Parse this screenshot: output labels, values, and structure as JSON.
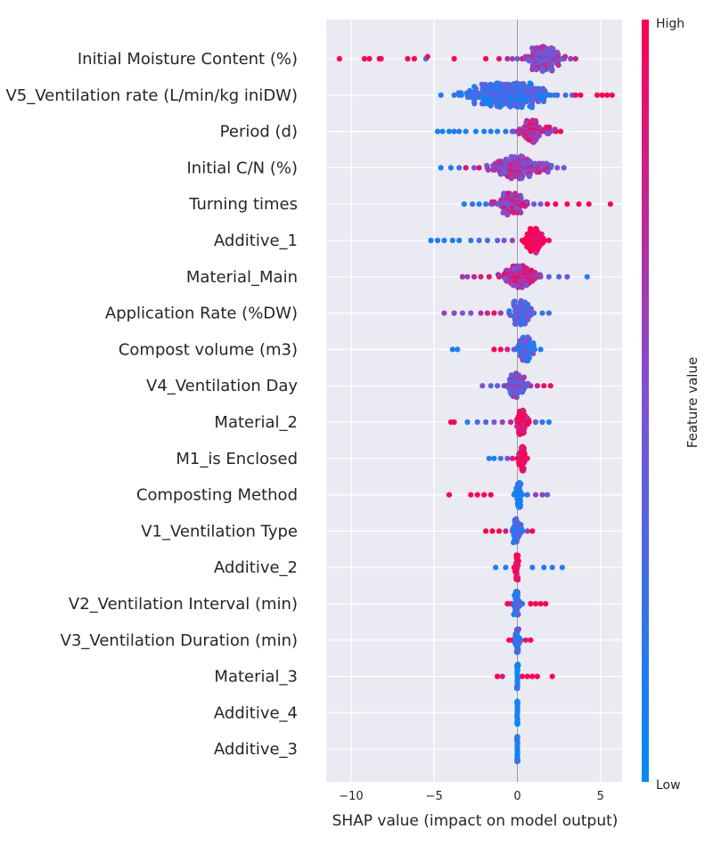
{
  "chart_data": {
    "type": "scatter",
    "subtype": "shap-beeswarm",
    "title": "",
    "xlabel": "SHAP value (impact on model output)",
    "ylabel": "",
    "xlim": [
      -11.5,
      6.3
    ],
    "xticks": [
      -10,
      -5,
      0,
      5
    ],
    "xtick_labels": [
      "−10",
      "−5",
      "0",
      "5"
    ],
    "grid": true,
    "colorbar": {
      "title": "Feature value",
      "high_label": "High",
      "low_label": "Low",
      "low_color": "#008afb",
      "high_color": "#ff0052"
    },
    "features": [
      {
        "name": "Initial Moisture Content (%)",
        "points": [
          [
            -10.7,
            1
          ],
          [
            -9.2,
            1
          ],
          [
            -8.9,
            1
          ],
          [
            -8.3,
            1
          ],
          [
            -8.2,
            1
          ],
          [
            -6.6,
            1
          ],
          [
            -6.2,
            1
          ],
          [
            -5.5,
            0.1
          ],
          [
            -5.4,
            0.9
          ],
          [
            -3.8,
            1
          ],
          [
            -1.9,
            1
          ],
          [
            -1.1,
            0.9
          ],
          [
            -0.6,
            0.7
          ],
          [
            -0.3,
            0.6
          ],
          [
            0,
            0.4
          ],
          [
            0.3,
            0.9
          ],
          [
            0.5,
            0.5
          ],
          [
            0.7,
            0.3
          ],
          [
            0.9,
            0.7
          ],
          [
            1.1,
            0.8
          ],
          [
            1.3,
            0.6
          ],
          [
            1.5,
            0.4
          ],
          [
            1.7,
            0.6
          ],
          [
            1.9,
            0.3
          ],
          [
            2.1,
            0.6
          ],
          [
            2.4,
            0.5
          ],
          [
            2.7,
            0.5
          ],
          [
            3.2,
            0.6
          ],
          [
            3.5,
            0.8
          ]
        ],
        "spread": [
          0.2,
          3.0
        ],
        "fill": 0.55,
        "density": 1.2
      },
      {
        "name": "V5_Ventilation rate (L/min/kg iniDW)",
        "points": [
          [
            -4.6,
            0.1
          ],
          [
            -3.8,
            0.1
          ],
          [
            -3.5,
            0.2
          ],
          [
            -3.0,
            0.1
          ],
          [
            -2.6,
            0.2
          ],
          [
            -2.1,
            0.1
          ],
          [
            -1.7,
            0.1
          ],
          [
            -1.3,
            0.2
          ],
          [
            -0.9,
            0.1
          ],
          [
            -0.5,
            0.1
          ],
          [
            0,
            0.2
          ],
          [
            0.4,
            0.2
          ],
          [
            0.8,
            0.3
          ],
          [
            1.2,
            0.2
          ],
          [
            1.6,
            0.3
          ],
          [
            2.0,
            0.2
          ],
          [
            2.4,
            0.3
          ],
          [
            2.9,
            0.3
          ],
          [
            3.3,
            0.3
          ],
          [
            3.5,
            1
          ],
          [
            3.8,
            1
          ],
          [
            4.8,
            1
          ],
          [
            5.1,
            1
          ],
          [
            5.4,
            1
          ],
          [
            5.7,
            1
          ]
        ],
        "spread": [
          -4.0,
          2.6
        ],
        "fill": 0.25,
        "density": 1.6
      },
      {
        "name": "Period (d)",
        "points": [
          [
            -4.8,
            0.1
          ],
          [
            -4.5,
            0.1
          ],
          [
            -4.1,
            0.1
          ],
          [
            -3.8,
            0.1
          ],
          [
            -3.5,
            0.1
          ],
          [
            -3.1,
            0.1
          ],
          [
            -2.5,
            0.1
          ],
          [
            -2.0,
            0.1
          ],
          [
            -1.6,
            0.1
          ],
          [
            -1.2,
            0.1
          ],
          [
            -0.7,
            0.2
          ],
          [
            -0.3,
            0.3
          ],
          [
            0.1,
            0.5
          ],
          [
            0.5,
            0.6
          ],
          [
            0.9,
            0.7
          ],
          [
            1.3,
            0.8
          ],
          [
            1.7,
            0.9
          ],
          [
            2.0,
            0.9
          ],
          [
            2.3,
            1
          ],
          [
            2.6,
            1
          ]
        ],
        "spread": [
          -0.5,
          2.4
        ],
        "fill": 0.7,
        "density": 0.8
      },
      {
        "name": "Initial C/N (%)",
        "points": [
          [
            -4.6,
            0.1
          ],
          [
            -4.0,
            0.1
          ],
          [
            -3.5,
            0.2
          ],
          [
            -3.1,
            0.9
          ],
          [
            -2.6,
            0.5
          ],
          [
            -2.3,
            0.9
          ],
          [
            -1.8,
            0.8
          ],
          [
            -1.3,
            0.8
          ],
          [
            -0.9,
            0.9
          ],
          [
            -0.5,
            0.7
          ],
          [
            0,
            0.6
          ],
          [
            0.4,
            0.5
          ],
          [
            0.8,
            0.5
          ],
          [
            1.2,
            0.4
          ],
          [
            1.6,
            0.4
          ],
          [
            2.0,
            0.4
          ],
          [
            2.4,
            0.5
          ],
          [
            2.8,
            0.4
          ]
        ],
        "spread": [
          -2.5,
          2.6
        ],
        "fill": 0.6,
        "density": 1.0
      },
      {
        "name": "Turning times",
        "points": [
          [
            -3.2,
            0.1
          ],
          [
            -2.7,
            0.2
          ],
          [
            -2.3,
            0.1
          ],
          [
            -1.9,
            0.2
          ],
          [
            -1.5,
            0.1
          ],
          [
            -1.0,
            0.6
          ],
          [
            -0.6,
            0.7
          ],
          [
            -0.2,
            0.8
          ],
          [
            0.2,
            0.6
          ],
          [
            0.6,
            0.6
          ],
          [
            1.0,
            0.4
          ],
          [
            1.4,
            0.5
          ],
          [
            1.8,
            0.9
          ],
          [
            2.3,
            1
          ],
          [
            3.0,
            1
          ],
          [
            3.7,
            1
          ],
          [
            4.3,
            1
          ],
          [
            5.6,
            1
          ]
        ],
        "spread": [
          -1.8,
          1.0
        ],
        "fill": 0.65,
        "density": 0.9
      },
      {
        "name": "Additive_1",
        "points": [
          [
            -5.2,
            0.1
          ],
          [
            -4.8,
            0.1
          ],
          [
            -4.4,
            0.1
          ],
          [
            -3.9,
            0.1
          ],
          [
            -3.5,
            0.1
          ],
          [
            -2.8,
            0.1
          ],
          [
            -2.3,
            0.2
          ],
          [
            -1.8,
            0.2
          ],
          [
            -1.2,
            0.4
          ],
          [
            -0.8,
            0.5
          ],
          [
            -0.3,
            0.6
          ],
          [
            0.3,
            1
          ],
          [
            0.7,
            1
          ],
          [
            1.1,
            1
          ],
          [
            1.5,
            1
          ],
          [
            1.9,
            0.95
          ]
        ],
        "spread": [
          0.1,
          1.9
        ],
        "fill": 0.97,
        "density": 1.0
      },
      {
        "name": "Material_Main",
        "points": [
          [
            -3.3,
            0.7
          ],
          [
            -3.0,
            0.6
          ],
          [
            -2.6,
            0.8
          ],
          [
            -2.2,
            0.8
          ],
          [
            -1.7,
            0.9
          ],
          [
            -1.1,
            0.9
          ],
          [
            -0.6,
            0.8
          ],
          [
            -0.1,
            0.7
          ],
          [
            0.4,
            0.8
          ],
          [
            0.9,
            0.6
          ],
          [
            1.4,
            0.5
          ],
          [
            1.9,
            0.4
          ],
          [
            2.5,
            0.3
          ],
          [
            3.0,
            0.5
          ],
          [
            4.2,
            0.1
          ]
        ],
        "spread": [
          -1.5,
          1.8
        ],
        "fill": 0.75,
        "density": 1.0
      },
      {
        "name": "Application Rate (%DW)",
        "points": [
          [
            -4.4,
            0.6
          ],
          [
            -3.8,
            0.6
          ],
          [
            -3.3,
            0.5
          ],
          [
            -2.8,
            0.5
          ],
          [
            -2.2,
            0.7
          ],
          [
            -1.8,
            0.8
          ],
          [
            -1.4,
            0.9
          ],
          [
            -1.0,
            0.7
          ],
          [
            -0.5,
            0.3
          ],
          [
            0,
            0.2
          ],
          [
            0.5,
            0.2
          ],
          [
            1.0,
            0.3
          ],
          [
            1.5,
            0.2
          ],
          [
            1.9,
            0.2
          ]
        ],
        "spread": [
          -0.8,
          1.2
        ],
        "fill": 0.35,
        "density": 1.0
      },
      {
        "name": "Compost volume (m3)",
        "points": [
          [
            -3.9,
            0.1
          ],
          [
            -3.6,
            0.1
          ],
          [
            -1.4,
            1
          ],
          [
            -1.0,
            1
          ],
          [
            -0.6,
            0.8
          ],
          [
            -0.2,
            0.5
          ],
          [
            0.2,
            0.2
          ],
          [
            0.6,
            0.2
          ],
          [
            1.0,
            0.2
          ],
          [
            1.4,
            0.1
          ]
        ],
        "spread": [
          -0.3,
          1.3
        ],
        "fill": 0.3,
        "density": 1.0
      },
      {
        "name": "V4_Ventilation Day",
        "points": [
          [
            -2.1,
            0.5
          ],
          [
            -1.6,
            0.3
          ],
          [
            -1.2,
            0.4
          ],
          [
            -0.8,
            0.3
          ],
          [
            -0.4,
            0.2
          ],
          [
            0,
            0.4
          ],
          [
            0.4,
            0.6
          ],
          [
            0.8,
            0.7
          ],
          [
            1.2,
            0.8
          ],
          [
            1.6,
            0.9
          ],
          [
            2.0,
            1
          ]
        ],
        "spread": [
          -0.9,
          0.8
        ],
        "fill": 0.45,
        "density": 1.0
      },
      {
        "name": "Material_2",
        "points": [
          [
            -4.0,
            1
          ],
          [
            -3.8,
            1
          ],
          [
            -3.0,
            0.1
          ],
          [
            -2.4,
            0.3
          ],
          [
            -1.9,
            0.3
          ],
          [
            -1.4,
            0.5
          ],
          [
            -0.9,
            0.6
          ],
          [
            -0.4,
            0.8
          ],
          [
            0,
            1
          ],
          [
            0.3,
            1
          ],
          [
            0.7,
            1
          ],
          [
            1.1,
            0.4
          ],
          [
            1.5,
            0.2
          ],
          [
            1.9,
            0.1
          ]
        ],
        "spread": [
          -0.2,
          0.7
        ],
        "fill": 0.95,
        "density": 1.2
      },
      {
        "name": "M1_is Enclosed",
        "points": [
          [
            -1.7,
            0.1
          ],
          [
            -1.4,
            0.1
          ],
          [
            -1.0,
            0.2
          ],
          [
            -0.6,
            0.5
          ],
          [
            -0.3,
            0.8
          ],
          [
            0,
            1
          ],
          [
            0.3,
            1
          ],
          [
            0.6,
            1
          ]
        ],
        "spread": [
          0.0,
          0.6
        ],
        "fill": 0.95,
        "density": 0.9
      },
      {
        "name": "Composting Method",
        "points": [
          [
            -4.1,
            1
          ],
          [
            -2.8,
            1
          ],
          [
            -2.4,
            1
          ],
          [
            -2.0,
            1
          ],
          [
            -1.6,
            1
          ],
          [
            -0.2,
            0.1
          ],
          [
            0,
            0.2
          ],
          [
            0.2,
            0.1
          ],
          [
            0.6,
            0.2
          ],
          [
            1.1,
            0.6
          ],
          [
            1.5,
            0.6
          ],
          [
            1.8,
            0.5
          ]
        ],
        "spread": [
          -0.2,
          0.4
        ],
        "fill": 0.1,
        "density": 0.8
      },
      {
        "name": "V1_Ventilation Type",
        "points": [
          [
            -1.9,
            1
          ],
          [
            -1.5,
            1
          ],
          [
            -1.1,
            1
          ],
          [
            -0.7,
            0.8
          ],
          [
            -0.3,
            0.4
          ],
          [
            0,
            0.2
          ],
          [
            0.3,
            0.1
          ],
          [
            0.6,
            0.6
          ],
          [
            0.9,
            1
          ]
        ],
        "spread": [
          -0.4,
          0.3
        ],
        "fill": 0.2,
        "density": 0.8
      },
      {
        "name": "Additive_2",
        "points": [
          [
            -1.3,
            0.1
          ],
          [
            -0.7,
            0.1
          ],
          [
            -0.2,
            1
          ],
          [
            0,
            1
          ],
          [
            0.9,
            0.1
          ],
          [
            1.6,
            0.1
          ],
          [
            2.1,
            0.1
          ],
          [
            2.7,
            0.1
          ]
        ],
        "spread": [
          -0.2,
          0.1
        ],
        "fill": 1.0,
        "density": 1.0
      },
      {
        "name": "V2_Ventilation Interval (min)",
        "points": [
          [
            -0.6,
            1
          ],
          [
            -0.4,
            0.9
          ],
          [
            -0.2,
            0.7
          ],
          [
            0,
            0.3
          ],
          [
            0.1,
            0.1
          ],
          [
            0.3,
            0.1
          ],
          [
            0.8,
            1
          ],
          [
            1.1,
            1
          ],
          [
            1.4,
            1
          ],
          [
            1.7,
            1
          ]
        ],
        "spread": [
          -0.3,
          0.2
        ],
        "fill": 0.2,
        "density": 0.9
      },
      {
        "name": "V3_Ventilation Duration (min)",
        "points": [
          [
            -0.5,
            1
          ],
          [
            -0.3,
            0.9
          ],
          [
            -0.1,
            0.6
          ],
          [
            0,
            0.2
          ],
          [
            0.2,
            0.1
          ],
          [
            0.5,
            0.9
          ],
          [
            0.8,
            1
          ]
        ],
        "spread": [
          -0.2,
          0.2
        ],
        "fill": 0.2,
        "density": 0.9
      },
      {
        "name": "Material_3",
        "points": [
          [
            -1.2,
            1
          ],
          [
            -0.9,
            0.8
          ],
          [
            0,
            0.1
          ],
          [
            0.3,
            1
          ],
          [
            0.6,
            1
          ],
          [
            0.9,
            1
          ],
          [
            1.2,
            1
          ],
          [
            2.1,
            1
          ]
        ],
        "spread": [
          -0.05,
          0.05
        ],
        "fill": 0.05,
        "density": 0.8
      },
      {
        "name": "Additive_4",
        "points": [
          [
            0,
            0.1
          ]
        ],
        "spread": [
          -0.03,
          0.03
        ],
        "fill": 0.05,
        "density": 0.9
      },
      {
        "name": "Additive_3",
        "points": [
          [
            0,
            0.1
          ]
        ],
        "spread": [
          -0.03,
          0.03
        ],
        "fill": 0.05,
        "density": 0.9
      }
    ]
  }
}
